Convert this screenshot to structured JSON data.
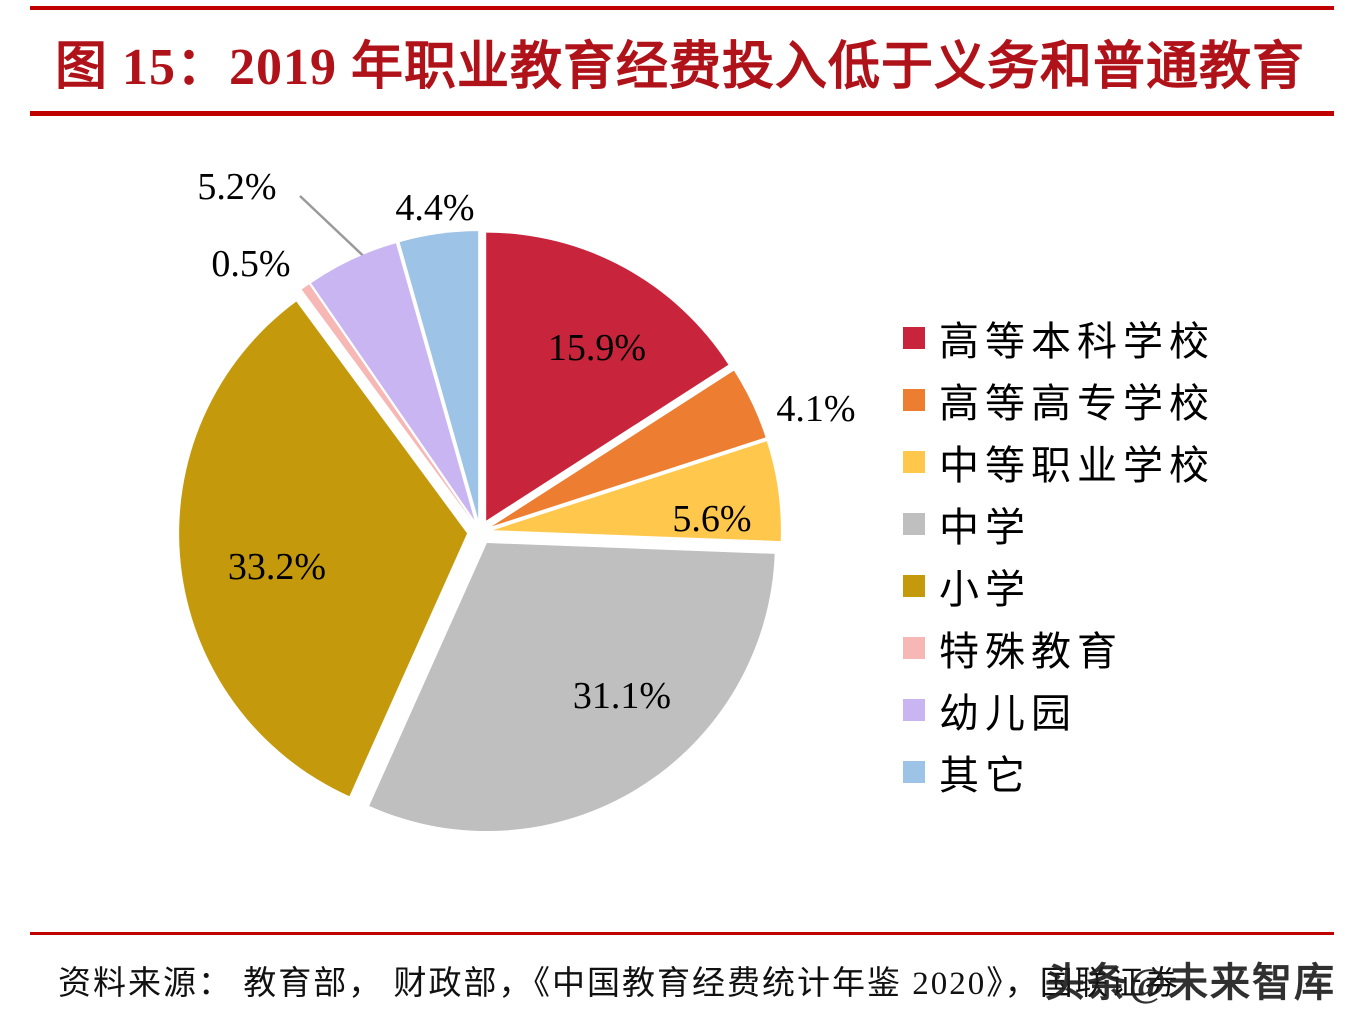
{
  "header": {
    "title": "图 15：2019 年职业教育经费投入低于义务和普通教育"
  },
  "chart_data": {
    "type": "pie",
    "title": "2019 年职业教育经费投入低于义务和普通教育",
    "legend_position": "right",
    "start_angle_deg": 0,
    "direction": "clockwise",
    "slices": [
      {
        "label": "高等本科学校",
        "value": 15.9,
        "display": "15.9%",
        "color": "#c8243c"
      },
      {
        "label": "高等高专学校",
        "value": 4.1,
        "display": "4.1%",
        "color": "#ed7d31"
      },
      {
        "label": "中等职业学校",
        "value": 5.6,
        "display": "5.6%",
        "color": "#ffc84d"
      },
      {
        "label": "中学",
        "value": 31.1,
        "display": "31.1%",
        "color": "#bfbfbf"
      },
      {
        "label": "小学",
        "value": 33.2,
        "display": "33.2%",
        "color": "#c49a0c"
      },
      {
        "label": "特殊教育",
        "value": 0.5,
        "display": "0.5%",
        "color": "#f6b7b5"
      },
      {
        "label": "幼儿园",
        "value": 5.2,
        "display": "5.2%",
        "color": "#c9b5f2"
      },
      {
        "label": "其它",
        "value": 4.4,
        "display": "4.4%",
        "color": "#9dc3e6"
      }
    ]
  },
  "footer": {
    "source": "资料来源： 教育部， 财政部，《中国教育经费统计年鉴 2020》，国联证券",
    "watermark": "头条@未来智库"
  },
  "colors": {
    "rule_red": "#c00000",
    "title_red": "#b01219",
    "label_black": "#000000"
  }
}
